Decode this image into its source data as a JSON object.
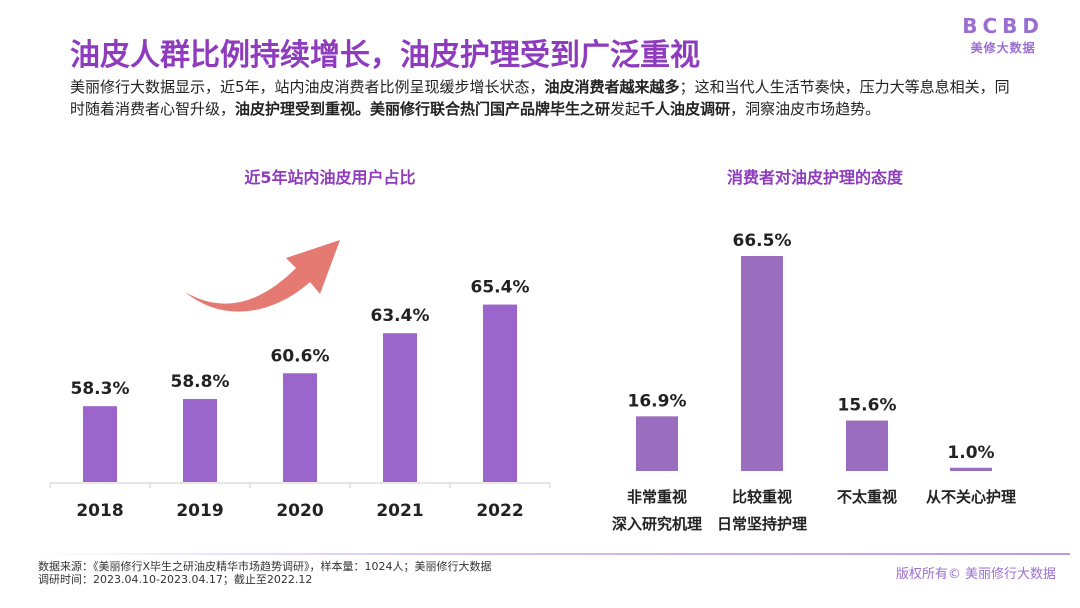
{
  "header": {
    "title": "油皮人群比例持续增长，油皮护理受到广泛重视",
    "logo_mark": "BCBD",
    "logo_sub": "美修大数据"
  },
  "intro": {
    "p1": "美丽修行大数据显示，近5年，站内油皮消费者比例呈现缓步增长状态，",
    "b1": "油皮消费者越来越多",
    "p2": "；这和当代人生活节奏快，压力大等息息相关，同时随着消费者心智升级，",
    "b2": "油皮护理受到重视。美丽修行联合热门国产品牌毕生之研",
    "p3": "发起",
    "b3": "千人油皮调研",
    "p4": "，洞察油皮市场趋势。"
  },
  "colors": {
    "title": "#8E3BBE",
    "bar_left": "#9B66CC",
    "bar_right": "#9A6DBF",
    "arrow": "#E57A72"
  },
  "chart_data": [
    {
      "type": "bar",
      "title": "近5年站内油皮用户占比",
      "categories": [
        "2018",
        "2019",
        "2020",
        "2021",
        "2022"
      ],
      "values": [
        58.3,
        58.8,
        60.6,
        63.4,
        65.4
      ],
      "value_labels": [
        "58.3%",
        "58.8%",
        "60.6%",
        "63.4%",
        "65.4%"
      ],
      "ylim": [
        53,
        66
      ],
      "xlabel": "",
      "ylabel": "",
      "grid": false,
      "annotation": "upward-trend-arrow"
    },
    {
      "type": "bar",
      "title": "消费者对油皮护理的态度",
      "categories": [
        [
          "非常重视",
          "深入研究机理"
        ],
        [
          "比较重视",
          "日常坚持护理"
        ],
        [
          "不太重视"
        ],
        [
          "从不关心护理"
        ]
      ],
      "values": [
        16.9,
        66.5,
        15.6,
        1.0
      ],
      "value_labels": [
        "16.9%",
        "66.5%",
        "15.6%",
        "1.0%"
      ],
      "ylim": [
        0,
        66.5
      ],
      "xlabel": "",
      "ylabel": "",
      "grid": false
    }
  ],
  "footer": {
    "source": "数据来源：《美丽修行X毕生之研油皮精华市场趋势调研》，样本量：1024人；美丽修行大数据",
    "period": "调研时间：2023.04.10-2023.04.17；截止至2022.12",
    "copyright": "版权所有© 美丽修行大数据"
  }
}
